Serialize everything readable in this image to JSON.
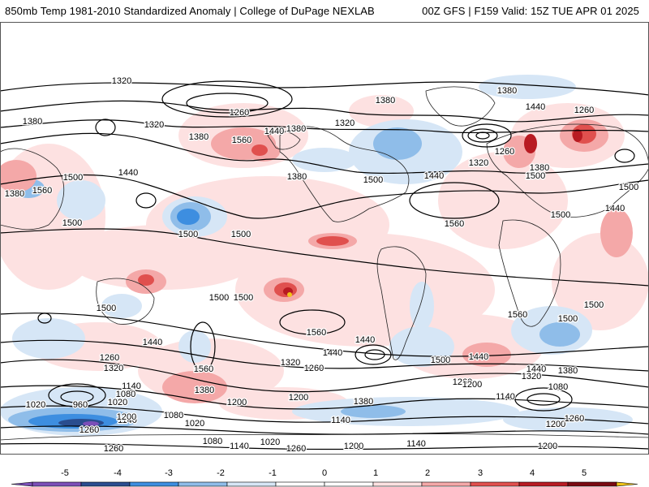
{
  "header": {
    "title_left": "850mb Temp 1981-2010 Standardized Anomaly | College of DuPage NEXLAB",
    "title_right": "00Z GFS | F159 Valid: 15Z TUE APR 01 2025"
  },
  "colors": {
    "neg5": "#7b4fb8",
    "neg4": "#2a4d8f",
    "neg3": "#3d8ee0",
    "neg2": "#8fbde9",
    "neg1": "#d6e6f6",
    "pos1": "#fde1e1",
    "pos2": "#f4a8a8",
    "pos3": "#e0504e",
    "pos4": "#b81b22",
    "pos5": "#7a0a12",
    "extreme": "#f0c419",
    "contour": "#000000",
    "coast": "#222222"
  },
  "colorbar": {
    "ticks": [
      "-5",
      "-4",
      "-3",
      "-2",
      "-1",
      "0",
      "1",
      "2",
      "3",
      "4",
      "5"
    ]
  },
  "contour_labels": [
    "1320",
    "1260",
    "1380",
    "1320",
    "1380",
    "1380",
    "1440",
    "1380",
    "1320",
    "1380",
    "1260",
    "1380",
    "1440",
    "1560",
    "1500",
    "1320",
    "1380",
    "1440",
    "1260",
    "1500",
    "1380",
    "1560",
    "1440",
    "1500",
    "1500",
    "1500",
    "1560",
    "1500",
    "1440",
    "1500",
    "1500",
    "1500",
    "1500",
    "1500",
    "1560",
    "1560",
    "1500",
    "1440",
    "1500",
    "1440",
    "1260",
    "1320",
    "1560",
    "1320",
    "1260",
    "1440",
    "1440",
    "1380",
    "1200",
    "1260",
    "1320",
    "1140",
    "1080",
    "1020",
    "960",
    "1020",
    "1380",
    "1200",
    "1200",
    "1380",
    "1140",
    "1080",
    "1200",
    "1140",
    "1020",
    "1080",
    "1200",
    "1140",
    "1260",
    "1080",
    "1140",
    "1020",
    "1260",
    "1200",
    "1140",
    "1200",
    "1260",
    "1260",
    "1500",
    "1440"
  ]
}
